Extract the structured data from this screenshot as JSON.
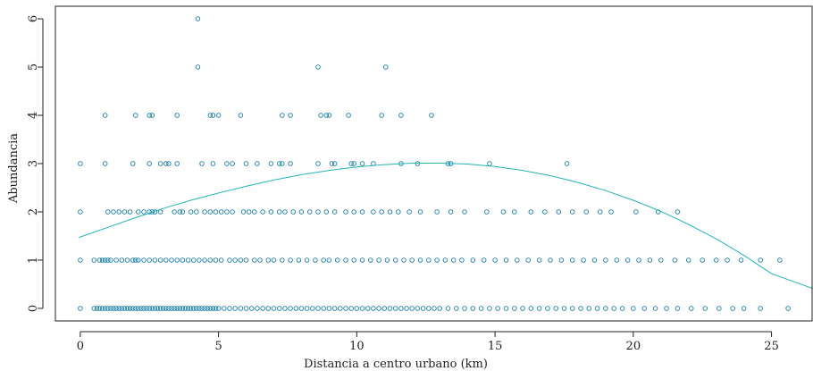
{
  "chart_data": {
    "type": "scatter",
    "xlabel": "Distancia a centro urbano (km)",
    "ylabel": "Abundancia",
    "xlim": [
      -0.9,
      26.5
    ],
    "ylim": [
      -0.26,
      6.26
    ],
    "x_ticks": [
      0,
      5,
      10,
      15,
      20,
      25
    ],
    "y_ticks": [
      0,
      1,
      2,
      3,
      4,
      5,
      6
    ],
    "grid": false,
    "colors": {
      "points": "#1a7fa8",
      "curve": "#26b5b5",
      "frame": "#222222"
    },
    "series": [
      {
        "type": "scatter",
        "points": {
          "6": [
            4.25
          ],
          "5": [
            4.25,
            8.6,
            11.05
          ],
          "4": [
            0.9,
            2.0,
            2.5,
            2.6,
            3.5,
            4.7,
            4.8,
            5.0,
            5.8,
            7.3,
            7.6,
            8.7,
            8.9,
            9.0,
            9.7,
            10.9,
            11.6,
            12.7
          ],
          "3": [
            0.0,
            0.9,
            1.9,
            2.5,
            2.9,
            3.1,
            3.2,
            3.5,
            4.4,
            4.8,
            5.3,
            5.5,
            6.0,
            6.4,
            6.9,
            7.2,
            7.3,
            7.6,
            8.6,
            9.1,
            9.2,
            9.8,
            9.9,
            10.2,
            10.6,
            11.6,
            12.2,
            13.3,
            13.4,
            14.8,
            17.6
          ],
          "2": [
            0.0,
            1.0,
            1.2,
            1.4,
            1.6,
            1.8,
            2.1,
            2.3,
            2.5,
            2.6,
            2.7,
            2.9,
            3.4,
            3.6,
            3.7,
            4.0,
            4.2,
            4.5,
            4.7,
            4.9,
            5.1,
            5.3,
            5.5,
            5.9,
            6.1,
            6.3,
            6.6,
            6.9,
            7.2,
            7.4,
            7.7,
            8.0,
            8.3,
            8.6,
            8.9,
            9.2,
            9.6,
            9.9,
            10.2,
            10.6,
            10.9,
            11.2,
            11.5,
            11.9,
            12.3,
            12.9,
            13.4,
            13.9,
            14.7,
            15.3,
            15.7,
            16.3,
            16.8,
            17.3,
            17.8,
            18.3,
            18.8,
            19.2,
            20.1,
            20.9,
            21.6
          ],
          "1": [
            0.0,
            0.5,
            0.7,
            0.8,
            0.9,
            1.0,
            1.1,
            1.3,
            1.5,
            1.7,
            1.9,
            2.0,
            2.1,
            2.3,
            2.5,
            2.7,
            2.9,
            3.1,
            3.3,
            3.5,
            3.7,
            3.9,
            4.1,
            4.3,
            4.5,
            4.7,
            4.9,
            5.1,
            5.4,
            5.6,
            5.8,
            6.0,
            6.3,
            6.5,
            6.8,
            7.0,
            7.3,
            7.6,
            7.9,
            8.2,
            8.5,
            8.8,
            9.0,
            9.3,
            9.6,
            9.9,
            10.2,
            10.5,
            10.8,
            11.1,
            11.4,
            11.7,
            12.0,
            12.3,
            12.6,
            12.9,
            13.2,
            13.5,
            13.8,
            14.2,
            14.6,
            15.0,
            15.4,
            15.8,
            16.2,
            16.6,
            17.0,
            17.4,
            17.8,
            18.2,
            18.6,
            19.0,
            19.4,
            19.8,
            20.2,
            20.6,
            21.0,
            21.5,
            22.0,
            22.5,
            23.0,
            23.4,
            23.9,
            24.6,
            25.3
          ],
          "0": [
            0.0,
            0.5,
            0.6,
            0.7,
            0.8,
            0.9,
            1.0,
            1.1,
            1.2,
            1.3,
            1.4,
            1.5,
            1.6,
            1.7,
            1.8,
            1.9,
            2.0,
            2.1,
            2.2,
            2.3,
            2.4,
            2.5,
            2.6,
            2.7,
            2.8,
            2.9,
            3.0,
            3.1,
            3.2,
            3.3,
            3.4,
            3.5,
            3.6,
            3.7,
            3.8,
            3.9,
            4.0,
            4.1,
            4.2,
            4.3,
            4.4,
            4.5,
            4.6,
            4.7,
            4.8,
            4.9,
            5.0,
            5.2,
            5.4,
            5.6,
            5.8,
            6.0,
            6.2,
            6.4,
            6.6,
            6.8,
            7.0,
            7.2,
            7.4,
            7.6,
            7.8,
            8.0,
            8.2,
            8.4,
            8.6,
            8.8,
            9.0,
            9.2,
            9.4,
            9.6,
            9.8,
            10.0,
            10.2,
            10.4,
            10.6,
            10.8,
            11.0,
            11.2,
            11.4,
            11.6,
            11.8,
            12.0,
            12.2,
            12.4,
            12.6,
            12.8,
            13.0,
            13.3,
            13.6,
            13.9,
            14.2,
            14.5,
            14.8,
            15.1,
            15.4,
            15.7,
            16.0,
            16.3,
            16.6,
            16.9,
            17.2,
            17.5,
            17.8,
            18.1,
            18.4,
            18.7,
            19.0,
            19.3,
            19.6,
            20.0,
            20.4,
            20.8,
            21.2,
            21.6,
            22.1,
            22.6,
            23.1,
            23.6,
            24.0,
            24.6,
            25.6
          ]
        }
      },
      {
        "type": "line",
        "x": [
          -0.05,
          1,
          2,
          3,
          4,
          5,
          6,
          7,
          8,
          9,
          10,
          11,
          12,
          13,
          14,
          15,
          16,
          17,
          18,
          19,
          20,
          21,
          22,
          23,
          24,
          25,
          26.5
        ],
        "y": [
          1.47,
          1.68,
          1.88,
          2.07,
          2.24,
          2.39,
          2.53,
          2.66,
          2.77,
          2.86,
          2.93,
          2.98,
          3.01,
          3.01,
          2.99,
          2.94,
          2.86,
          2.75,
          2.61,
          2.44,
          2.24,
          2.01,
          1.74,
          1.44,
          1.1,
          0.72,
          0.41
        ]
      }
    ]
  }
}
